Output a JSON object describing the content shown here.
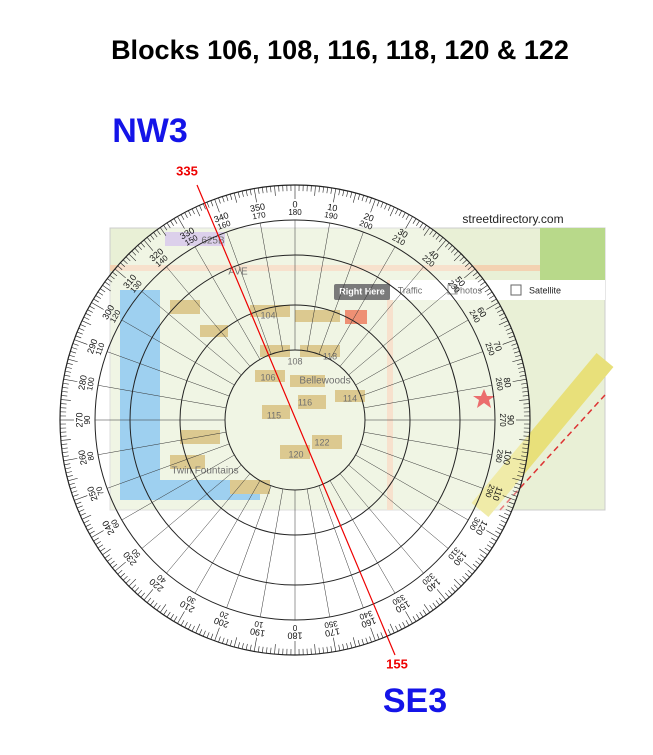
{
  "title": "Blocks 106, 108, 116, 118, 120 & 122",
  "direction_from": "NW3",
  "direction_to": "SE3",
  "bearing_from": "335",
  "bearing_to": "155",
  "map": {
    "source": "streetdirectory.com",
    "marker": "Right Here",
    "controls": [
      "Traffic",
      "Photos",
      "Satellite"
    ],
    "places": [
      "Bellewoods",
      "Twin Fountains",
      "AVE",
      "625B"
    ],
    "blocks": [
      "104",
      "106",
      "108",
      "114",
      "115",
      "116",
      "118",
      "120",
      "122"
    ]
  },
  "compass": {
    "outer_scale": [
      0,
      10,
      20,
      30,
      40,
      50,
      60,
      70,
      80,
      90,
      100,
      110,
      120,
      130,
      140,
      150,
      160,
      170,
      180,
      190,
      200,
      210,
      220,
      230,
      240,
      250,
      260,
      270,
      280,
      290,
      300,
      310,
      320,
      330,
      340,
      350
    ],
    "inner_scale": [
      180,
      190,
      200,
      210,
      220,
      230,
      240,
      250,
      260,
      270,
      280,
      290,
      300,
      310,
      320,
      330,
      340,
      350,
      0,
      10,
      20,
      30,
      40,
      50,
      60,
      70,
      80,
      90,
      100,
      110,
      120,
      130,
      140,
      150,
      160,
      170
    ]
  }
}
